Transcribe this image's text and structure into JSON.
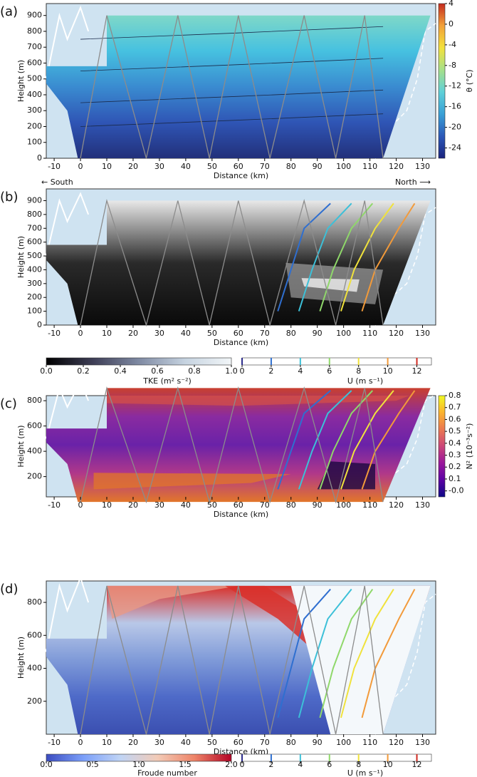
{
  "chart_data": [
    {
      "type": "contour",
      "panel_label": "(a)",
      "xlabel": "Distance (km)",
      "ylabel": "Height (m)",
      "xlim": [
        -13,
        135
      ],
      "ylim": [
        0,
        975
      ],
      "xticks": [
        -10,
        0,
        10,
        20,
        30,
        40,
        50,
        60,
        70,
        80,
        90,
        100,
        110,
        120,
        130
      ],
      "yticks": [
        0,
        100,
        200,
        300,
        400,
        500,
        600,
        700,
        800,
        900
      ],
      "field_colors": [
        "#22307a",
        "#2f55b5",
        "#3a8bd0",
        "#46c1e0",
        "#7fd8c8"
      ],
      "colorbars": [
        {
          "orientation": "vertical",
          "label": "θ (°C)",
          "lim": [
            -26,
            4
          ],
          "ticks": [
            4,
            0,
            -4,
            -8,
            -12,
            -16,
            -20,
            -24
          ],
          "colors": [
            "#1a237e",
            "#2c58b8",
            "#39a0d6",
            "#5fd0d8",
            "#a6e08a",
            "#f3e13c",
            "#f2a13a",
            "#c42b1f"
          ]
        }
      ]
    },
    {
      "type": "contour",
      "panel_label": "(b)",
      "xlabel": "Distance (km)",
      "ylabel": "Height (m)",
      "annotations": [
        "← South",
        "North ⟶"
      ],
      "xlim": [
        -13,
        135
      ],
      "ylim": [
        0,
        985
      ],
      "xticks": [
        -10,
        0,
        10,
        20,
        30,
        40,
        50,
        60,
        70,
        80,
        90,
        100,
        110,
        120,
        130
      ],
      "yticks": [
        0,
        100,
        200,
        300,
        400,
        500,
        600,
        700,
        800,
        900
      ],
      "field_colors": [
        "#0a0a0a",
        "#1a1a1a",
        "#2a2a2a",
        "#8a8a8a",
        "#e8e8e8"
      ],
      "colorbars": [
        {
          "orientation": "horizontal",
          "label": "TKE (m² s⁻²)",
          "lim": [
            0,
            1.0
          ],
          "ticks": [
            {
              "value": 0,
              "label": "0.0"
            },
            0.2,
            0.4,
            0.6,
            0.8,
            {
              "value": 1,
              "label": "1.0"
            }
          ],
          "colors": [
            "#000000",
            "#3d3d55",
            "#7f8aa3",
            "#c6d3e0",
            "#f2f6f8"
          ]
        },
        {
          "orientation": "horizontal",
          "label": "U (m s⁻¹)",
          "lim": [
            0,
            13
          ],
          "ticks": [
            0,
            2,
            4,
            6,
            8,
            10,
            12
          ],
          "colors": [
            "#2c2c8c",
            "#2f6fd0",
            "#3cc0d8",
            "#8fd86a",
            "#f0e23c",
            "#f29a3a",
            "#d02a20"
          ]
        }
      ]
    },
    {
      "type": "contour",
      "panel_label": "(c)",
      "xlabel": "Distance (km)",
      "ylabel": "Height (m)",
      "xlim": [
        -13,
        135
      ],
      "ylim": [
        40,
        840
      ],
      "xticks": [
        -10,
        0,
        10,
        20,
        30,
        40,
        50,
        60,
        70,
        80,
        90,
        100,
        110,
        120,
        130
      ],
      "yticks": [
        200,
        400,
        600,
        800
      ],
      "field_colors": [
        "#e2762a",
        "#b0388a",
        "#6a22a8",
        "#8a2ba0",
        "#c9402f"
      ],
      "colorbars": [
        {
          "orientation": "vertical",
          "label": "N² (10⁻³s⁻²)",
          "lim": [
            -0.05,
            0.8
          ],
          "ticks": [
            0.8,
            0.7,
            0.6,
            0.5,
            0.4,
            0.3,
            0.2,
            0.1,
            {
              "value": 0,
              "label": "-0.0"
            }
          ],
          "colors": [
            "#0d0887",
            "#5b02a3",
            "#9a179b",
            "#cb4678",
            "#eb7852",
            "#fbb32f",
            "#f0f921"
          ]
        }
      ]
    },
    {
      "type": "contour",
      "panel_label": "(d)",
      "xlabel": "Distance (km)",
      "ylabel": "Height (m)",
      "xlim": [
        -13,
        135
      ],
      "ylim": [
        0,
        930
      ],
      "xticks": [
        -10,
        0,
        10,
        20,
        30,
        40,
        50,
        60,
        70,
        80,
        90,
        100,
        110,
        120,
        130
      ],
      "yticks": [
        200,
        400,
        600,
        800
      ],
      "field_colors": [
        "#3b4fb0",
        "#4e6ac8",
        "#7f9ad8",
        "#b9c8e8",
        "#d9302a"
      ],
      "colorbars": [
        {
          "orientation": "horizontal",
          "label": "Froude number",
          "lim": [
            0,
            2.0
          ],
          "ticks": [
            {
              "value": 0,
              "label": "0.0"
            },
            0.5,
            {
              "value": 1,
              "label": "1.0"
            },
            1.5,
            {
              "value": 2,
              "label": "2.0"
            }
          ],
          "colors": [
            "#3b4cc0",
            "#7b9ff9",
            "#c0d4f5",
            "#f2cbb7",
            "#ee8468",
            "#b40426"
          ]
        },
        {
          "orientation": "horizontal",
          "label": "U (m s⁻¹)",
          "lim": [
            0,
            13
          ],
          "ticks": [
            0,
            2,
            4,
            6,
            8,
            10,
            12
          ],
          "colors": [
            "#2c2c8c",
            "#2f6fd0",
            "#3cc0d8",
            "#8fd86a",
            "#f0e23c",
            "#f29a3a",
            "#d02a20"
          ]
        }
      ]
    }
  ]
}
